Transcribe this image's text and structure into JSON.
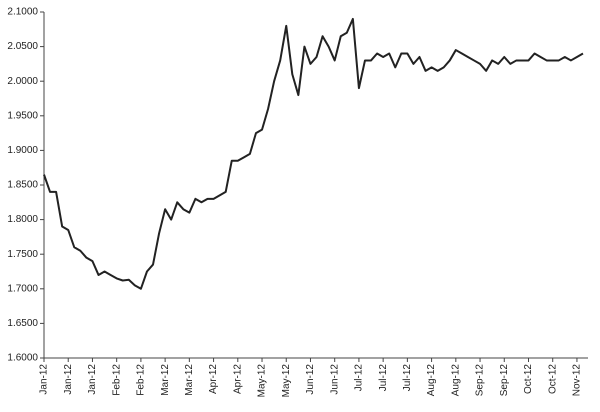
{
  "chart_data": {
    "type": "line",
    "categories": [
      "Jan-12",
      null,
      null,
      null,
      "Jan-12",
      null,
      null,
      null,
      "Jan-12",
      null,
      null,
      null,
      "Feb-12",
      null,
      null,
      null,
      "Feb-12",
      null,
      null,
      null,
      "Mar-12",
      null,
      null,
      null,
      "Mar-12",
      null,
      null,
      null,
      "Apr-12",
      null,
      null,
      null,
      "Apr-12",
      null,
      null,
      null,
      "May-12",
      null,
      null,
      null,
      "May-12",
      null,
      null,
      null,
      "Jun-12",
      null,
      null,
      null,
      "Jun-12",
      null,
      null,
      null,
      "Jul-12",
      null,
      null,
      null,
      "Jul-12",
      null,
      null,
      null,
      "Jul-12",
      null,
      null,
      null,
      "Aug-12",
      null,
      null,
      null,
      "Aug-12",
      null,
      null,
      null,
      "Sep-12",
      null,
      null,
      null,
      "Sep-12",
      null,
      null,
      null,
      "Oct-12",
      null,
      null,
      null,
      "Oct-12",
      null,
      null,
      null,
      "Nov-12",
      null
    ],
    "series": [
      {
        "color": "#222222",
        "values": [
          1.865,
          1.84,
          1.84,
          1.79,
          1.785,
          1.76,
          1.755,
          1.745,
          1.74,
          1.72,
          1.725,
          1.72,
          1.715,
          1.712,
          1.713,
          1.705,
          1.7,
          1.725,
          1.735,
          1.78,
          1.815,
          1.8,
          1.825,
          1.815,
          1.81,
          1.83,
          1.825,
          1.83,
          1.83,
          1.835,
          1.84,
          1.885,
          1.885,
          1.89,
          1.895,
          1.925,
          1.93,
          1.96,
          2.0,
          2.03,
          2.08,
          2.01,
          1.98,
          2.05,
          2.025,
          2.035,
          2.065,
          2.05,
          2.03,
          2.065,
          2.07,
          2.09,
          1.99,
          2.03,
          2.03,
          2.04,
          2.035,
          2.04,
          2.02,
          2.04,
          2.04,
          2.025,
          2.035,
          2.015,
          2.02,
          2.015,
          2.02,
          2.03,
          2.045,
          2.04,
          2.035,
          2.03,
          2.025,
          2.015,
          2.03,
          2.025,
          2.035,
          2.025,
          2.03,
          2.03,
          2.03,
          2.04,
          2.035,
          2.03,
          2.03,
          2.03,
          2.035,
          2.03,
          2.035,
          2.04
        ]
      }
    ],
    "ylim": [
      1.6,
      2.1
    ],
    "yticks": [
      {
        "value": 1.6,
        "label": "1.6000"
      },
      {
        "value": 1.65,
        "label": "1.6500"
      },
      {
        "value": 1.7,
        "label": "1.7000"
      },
      {
        "value": 1.75,
        "label": "1.7500"
      },
      {
        "value": 1.8,
        "label": "1.8000"
      },
      {
        "value": 1.85,
        "label": "1.8500"
      },
      {
        "value": 1.9,
        "label": "1.9000"
      },
      {
        "value": 1.95,
        "label": "1.9500"
      },
      {
        "value": 2.0,
        "label": "2.0000"
      },
      {
        "value": 2.05,
        "label": "2.0500"
      },
      {
        "value": 2.1,
        "label": "2.1000"
      }
    ],
    "grid": false
  }
}
